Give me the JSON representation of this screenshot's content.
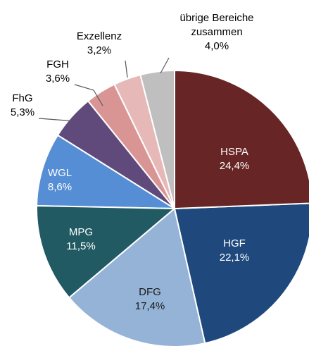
{
  "chart_data": {
    "type": "pie",
    "categories": [
      "HSPA",
      "HGF",
      "DFG",
      "MPG",
      "WGL",
      "FhG",
      "FGH",
      "Exzellenz",
      "übrige Bereiche zusammen"
    ],
    "values": [
      24.4,
      22.1,
      17.4,
      11.5,
      8.6,
      5.3,
      3.6,
      3.2,
      4.0
    ],
    "value_labels": [
      "24,4%",
      "22,1%",
      "17,4%",
      "11,5%",
      "8,6%",
      "5,3%",
      "3,6%",
      "3,2%",
      "4,0%"
    ],
    "colors": [
      "#672525",
      "#1f497d",
      "#95b3d7",
      "#215a63",
      "#558ed5",
      "#604a7b",
      "#d99594",
      "#e6b9b8",
      "#bfbfbf"
    ]
  }
}
